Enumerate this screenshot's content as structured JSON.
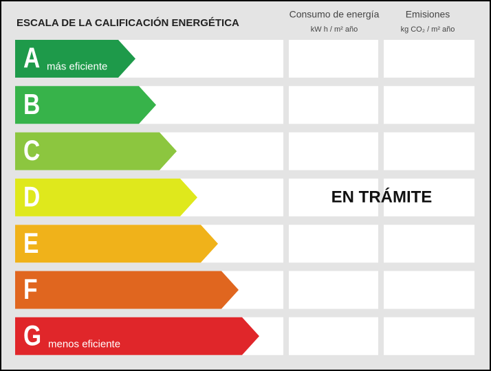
{
  "header": {
    "title": "ESCALA DE LA CALIFICACIÓN ENERGÉTICA",
    "columns": [
      {
        "title": "Consumo de energía",
        "unit": "kW h / m² año"
      },
      {
        "title": "Emisiones",
        "unit": "kg CO₂ / m² año"
      }
    ]
  },
  "ratings": [
    {
      "letter": "A",
      "color": "#1e9a4a",
      "note": "más eficiente"
    },
    {
      "letter": "B",
      "color": "#37b34a"
    },
    {
      "letter": "C",
      "color": "#8cc63f"
    },
    {
      "letter": "D",
      "color": "#dfe81c"
    },
    {
      "letter": "E",
      "color": "#f0b21a"
    },
    {
      "letter": "F",
      "color": "#e0661f"
    },
    {
      "letter": "G",
      "color": "#e0262a",
      "note": "menos eficiente"
    }
  ],
  "status": "EN TRÁMITE"
}
